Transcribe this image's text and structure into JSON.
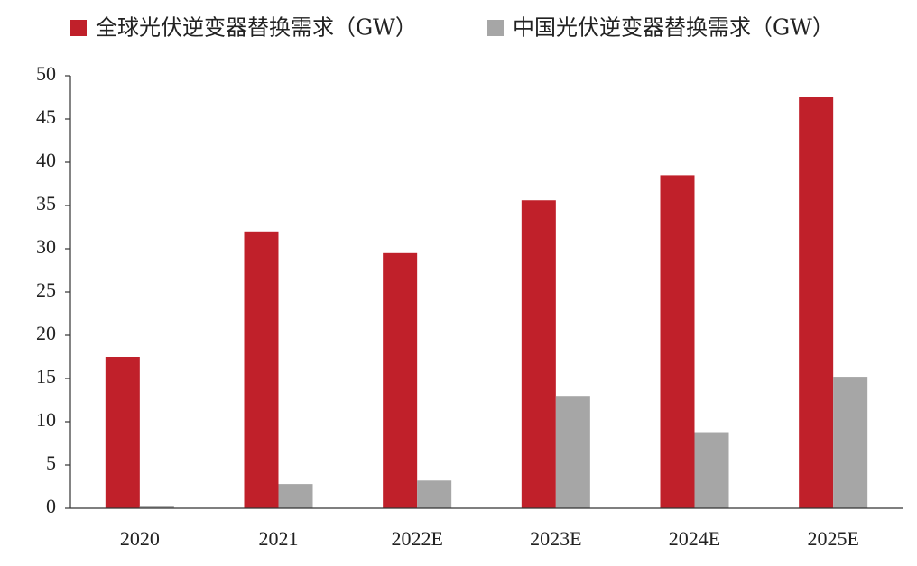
{
  "chart_data": {
    "type": "bar",
    "categories": [
      "2020",
      "2021",
      "2022E",
      "2023E",
      "2024E",
      "2025E"
    ],
    "series": [
      {
        "name": "全球光伏逆变器替换需求（GW）",
        "color": "#c0202a",
        "values": [
          17.5,
          32,
          29.5,
          35.6,
          38.5,
          47.5
        ]
      },
      {
        "name": "中国光伏逆变器替换需求（GW）",
        "color": "#a6a6a6",
        "values": [
          0.3,
          2.8,
          3.2,
          13,
          8.8,
          15.2
        ]
      }
    ],
    "ylim": [
      0,
      50
    ],
    "yticks": [
      0,
      5,
      10,
      15,
      20,
      25,
      30,
      35,
      40,
      45,
      50
    ],
    "grid": false
  }
}
